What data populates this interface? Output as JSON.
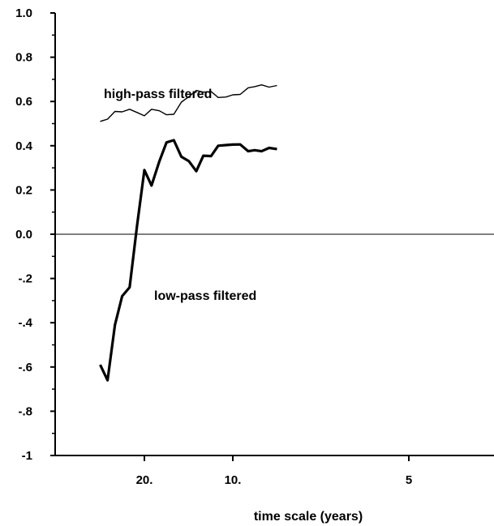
{
  "chart_data": {
    "type": "line",
    "title": "",
    "xlabel": "time scale (years)",
    "ylabel": "",
    "ylim": [
      -1.0,
      1.0
    ],
    "x_axis": {
      "ticks": [
        {
          "value": 20,
          "label": "20."
        },
        {
          "value": 10,
          "label": "10."
        },
        {
          "value": 5,
          "label": "5"
        }
      ]
    },
    "y_axis": {
      "ticks": [
        {
          "value": 1.0,
          "label": "1.0"
        },
        {
          "value": 0.8,
          "label": "0.8"
        },
        {
          "value": 0.6,
          "label": "0.6"
        },
        {
          "value": 0.4,
          "label": "0.4"
        },
        {
          "value": 0.2,
          "label": "0.2"
        },
        {
          "value": 0.0,
          "label": "0.0"
        },
        {
          "value": -0.2,
          "label": "-.2"
        },
        {
          "value": -0.4,
          "label": "-.4"
        },
        {
          "value": -0.6,
          "label": "-.6"
        },
        {
          "value": -0.8,
          "label": "-.8"
        },
        {
          "value": -1.0,
          "label": "-1"
        }
      ]
    },
    "reference_line": 0.0,
    "grid": false,
    "series": [
      {
        "name": "high-pass filtered",
        "color": "#000000",
        "style": "thin",
        "points": [
          {
            "x": 40.0,
            "y": 0.51
          },
          {
            "x": 34.3,
            "y": 0.52
          },
          {
            "x": 30.0,
            "y": 0.555
          },
          {
            "x": 26.7,
            "y": 0.553
          },
          {
            "x": 24.0,
            "y": 0.565
          },
          {
            "x": 21.8,
            "y": 0.55
          },
          {
            "x": 20.0,
            "y": 0.535
          },
          {
            "x": 18.5,
            "y": 0.565
          },
          {
            "x": 17.1,
            "y": 0.558
          },
          {
            "x": 16.0,
            "y": 0.54
          },
          {
            "x": 15.0,
            "y": 0.542
          },
          {
            "x": 14.1,
            "y": 0.597
          },
          {
            "x": 13.3,
            "y": 0.622
          },
          {
            "x": 12.6,
            "y": 0.65
          },
          {
            "x": 12.0,
            "y": 0.642
          },
          {
            "x": 11.4,
            "y": 0.645
          },
          {
            "x": 10.9,
            "y": 0.618
          },
          {
            "x": 10.4,
            "y": 0.62
          },
          {
            "x": 10.0,
            "y": 0.63
          },
          {
            "x": 9.6,
            "y": 0.632
          },
          {
            "x": 9.2,
            "y": 0.662
          },
          {
            "x": 8.9,
            "y": 0.667
          },
          {
            "x": 8.6,
            "y": 0.675
          },
          {
            "x": 8.3,
            "y": 0.665
          },
          {
            "x": 8.0,
            "y": 0.672
          }
        ]
      },
      {
        "name": "low-pass filtered",
        "color": "#000000",
        "style": "thick",
        "points": [
          {
            "x": 40.0,
            "y": -0.59
          },
          {
            "x": 34.3,
            "y": -0.66
          },
          {
            "x": 30.0,
            "y": -0.41
          },
          {
            "x": 26.7,
            "y": -0.28
          },
          {
            "x": 24.0,
            "y": -0.24
          },
          {
            "x": 21.8,
            "y": 0.04
          },
          {
            "x": 20.0,
            "y": 0.29
          },
          {
            "x": 18.5,
            "y": 0.22
          },
          {
            "x": 17.1,
            "y": 0.33
          },
          {
            "x": 16.0,
            "y": 0.415
          },
          {
            "x": 15.0,
            "y": 0.425
          },
          {
            "x": 14.1,
            "y": 0.35
          },
          {
            "x": 13.3,
            "y": 0.33
          },
          {
            "x": 12.6,
            "y": 0.285
          },
          {
            "x": 12.0,
            "y": 0.355
          },
          {
            "x": 11.4,
            "y": 0.353
          },
          {
            "x": 10.9,
            "y": 0.4
          },
          {
            "x": 10.4,
            "y": 0.403
          },
          {
            "x": 10.0,
            "y": 0.405
          },
          {
            "x": 9.6,
            "y": 0.406
          },
          {
            "x": 9.2,
            "y": 0.375
          },
          {
            "x": 8.9,
            "y": 0.38
          },
          {
            "x": 8.6,
            "y": 0.375
          },
          {
            "x": 8.3,
            "y": 0.39
          },
          {
            "x": 8.0,
            "y": 0.385
          }
        ]
      }
    ]
  }
}
